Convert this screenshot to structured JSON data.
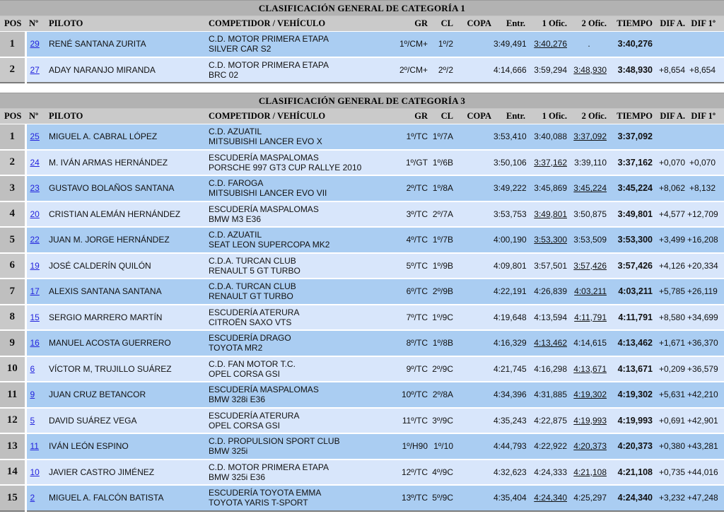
{
  "colors": {
    "title_bar": "#b2b2b2",
    "header_row": "#cacaca",
    "row_dark_blue": "#aacdf2",
    "row_light_blue": "#d8e6fb",
    "pos_dark_gray": "#bfbfbf",
    "pos_light_gray": "#c9c9c9",
    "link_blue": "#2222dd"
  },
  "tables": [
    {
      "title": "CLASIFICACIÓN GENERAL DE CATEGORÍA 1",
      "columns": [
        "POS",
        "Nº",
        "PILOTO",
        "COMPETIDOR / VEHÍCULO",
        "GR",
        "CL",
        "COPA",
        "Entr.",
        "1 Ofic.",
        "2 Ofic.",
        "TIEMPO",
        "DIF A.",
        "DIF 1º"
      ],
      "rows": [
        {
          "pos": "1",
          "num": "29",
          "pilot": "RENÉ SANTANA ZURITA",
          "competitor": "C.D. MOTOR PRIMERA ETAPA",
          "vehicle": "SILVER CAR S2",
          "gr": "1º/CM+",
          "cl": "1º/2",
          "copa": "",
          "entr": "3:49,491",
          "ofic1": "3:40,276",
          "ofic2": ".",
          "best": "1",
          "tiempo": "3:40,276",
          "dif_a": "",
          "dif_1": ""
        },
        {
          "pos": "2",
          "num": "27",
          "pilot": "ADAY NARANJO MIRANDA",
          "competitor": "C.D. MOTOR PRIMERA ETAPA",
          "vehicle": "BRC 02",
          "gr": "2º/CM+",
          "cl": "2º/2",
          "copa": "",
          "entr": "4:14,666",
          "ofic1": "3:59,294",
          "ofic2": "3:48,930",
          "best": "2",
          "tiempo": "3:48,930",
          "dif_a": "+8,654",
          "dif_1": "+8,654"
        }
      ]
    },
    {
      "title": "CLASIFICACIÓN GENERAL DE CATEGORÍA 3",
      "columns": [
        "POS",
        "Nº",
        "PILOTO",
        "COMPETIDOR / VEHÍCULO",
        "GR",
        "CL",
        "COPA",
        "Entr.",
        "1 Ofic.",
        "2 Ofic.",
        "TIEMPO",
        "DIF A.",
        "DIF 1º"
      ],
      "rows": [
        {
          "pos": "1",
          "num": "25",
          "pilot": "MIGUEL A. CABRAL LÓPEZ",
          "competitor": "C.D. AZUATIL",
          "vehicle": "MITSUBISHI LANCER EVO X",
          "gr": "1º/TC",
          "cl": "1º/7A",
          "copa": "",
          "entr": "3:53,410",
          "ofic1": "3:40,088",
          "ofic2": "3:37,092",
          "best": "2",
          "tiempo": "3:37,092",
          "dif_a": "",
          "dif_1": ""
        },
        {
          "pos": "2",
          "num": "24",
          "pilot": "M. IVÁN ARMAS HERNÁNDEZ",
          "competitor": "ESCUDERÍA MASPALOMAS",
          "vehicle": "PORSCHE 997 GT3 CUP RALLYE 2010",
          "gr": "1º/GT",
          "cl": "1º/6B",
          "copa": "",
          "entr": "3:50,106",
          "ofic1": "3:37,162",
          "ofic2": "3:39,110",
          "best": "1",
          "tiempo": "3:37,162",
          "dif_a": "+0,070",
          "dif_1": "+0,070"
        },
        {
          "pos": "3",
          "num": "23",
          "pilot": "GUSTAVO BOLAÑOS SANTANA",
          "competitor": "C.D. FAROGA",
          "vehicle": "MITSUBISHI LANCER EVO VII",
          "gr": "2º/TC",
          "cl": "1º/8A",
          "copa": "",
          "entr": "3:49,222",
          "ofic1": "3:45,869",
          "ofic2": "3:45,224",
          "best": "2",
          "tiempo": "3:45,224",
          "dif_a": "+8,062",
          "dif_1": "+8,132"
        },
        {
          "pos": "4",
          "num": "20",
          "pilot": "CRISTIAN ALEMÁN HERNÁNDEZ",
          "competitor": "ESCUDERÍA MASPALOMAS",
          "vehicle": "BMW M3 E36",
          "gr": "3º/TC",
          "cl": "2º/7A",
          "copa": "",
          "entr": "3:53,753",
          "ofic1": "3:49,801",
          "ofic2": "3:50,875",
          "best": "1",
          "tiempo": "3:49,801",
          "dif_a": "+4,577",
          "dif_1": "+12,709"
        },
        {
          "pos": "5",
          "num": "22",
          "pilot": "JUAN M. JORGE HERNÁNDEZ",
          "competitor": "C.D. AZUATIL",
          "vehicle": "SEAT LEON SUPERCOPA MK2",
          "gr": "4º/TC",
          "cl": "1º/7B",
          "copa": "",
          "entr": "4:00,190",
          "ofic1": "3:53,300",
          "ofic2": "3:53,509",
          "best": "1",
          "tiempo": "3:53,300",
          "dif_a": "+3,499",
          "dif_1": "+16,208"
        },
        {
          "pos": "6",
          "num": "19",
          "pilot": "JOSÉ CALDERÍN QUILÓN",
          "competitor": "C.D.A. TURCAN CLUB",
          "vehicle": "RENAULT 5 GT TURBO",
          "gr": "5º/TC",
          "cl": "1º/9B",
          "copa": "",
          "entr": "4:09,801",
          "ofic1": "3:57,501",
          "ofic2": "3:57,426",
          "best": "2",
          "tiempo": "3:57,426",
          "dif_a": "+4,126",
          "dif_1": "+20,334"
        },
        {
          "pos": "7",
          "num": "17",
          "pilot": "ALEXIS SANTANA SANTANA",
          "competitor": "C.D.A. TURCAN CLUB",
          "vehicle": "RENAULT GT TURBO",
          "gr": "6º/TC",
          "cl": "2º/9B",
          "copa": "",
          "entr": "4:22,191",
          "ofic1": "4:26,839",
          "ofic2": "4:03,211",
          "best": "2",
          "tiempo": "4:03,211",
          "dif_a": "+5,785",
          "dif_1": "+26,119"
        },
        {
          "pos": "8",
          "num": "15",
          "pilot": "SERGIO MARRERO MARTÍN",
          "competitor": "ESCUDERÍA ATERURA",
          "vehicle": "CITROËN SAXO VTS",
          "gr": "7º/TC",
          "cl": "1º/9C",
          "copa": "",
          "entr": "4:19,648",
          "ofic1": "4:13,594",
          "ofic2": "4:11,791",
          "best": "2",
          "tiempo": "4:11,791",
          "dif_a": "+8,580",
          "dif_1": "+34,699"
        },
        {
          "pos": "9",
          "num": "16",
          "pilot": "MANUEL ACOSTA GUERRERO",
          "competitor": "ESCUDERÍA DRAGO",
          "vehicle": "TOYOTA MR2",
          "gr": "8º/TC",
          "cl": "1º/8B",
          "copa": "",
          "entr": "4:16,329",
          "ofic1": "4:13,462",
          "ofic2": "4:14,615",
          "best": "1",
          "tiempo": "4:13,462",
          "dif_a": "+1,671",
          "dif_1": "+36,370"
        },
        {
          "pos": "10",
          "num": "6",
          "pilot": "VÍCTOR M, TRUJILLO SUÁREZ",
          "competitor": "C.D. FAN MOTOR T.C.",
          "vehicle": "OPEL CORSA GSI",
          "gr": "9º/TC",
          "cl": "2º/9C",
          "copa": "",
          "entr": "4:21,745",
          "ofic1": "4:16,298",
          "ofic2": "4:13,671",
          "best": "2",
          "tiempo": "4:13,671",
          "dif_a": "+0,209",
          "dif_1": "+36,579"
        },
        {
          "pos": "11",
          "num": "9",
          "pilot": "JUAN CRUZ BETANCOR",
          "competitor": "ESCUDERÍA MASPALOMAS",
          "vehicle": "BMW 328i E36",
          "gr": "10º/TC",
          "cl": "2º/8A",
          "copa": "",
          "entr": "4:34,396",
          "ofic1": "4:31,885",
          "ofic2": "4:19,302",
          "best": "2",
          "tiempo": "4:19,302",
          "dif_a": "+5,631",
          "dif_1": "+42,210"
        },
        {
          "pos": "12",
          "num": "5",
          "pilot": "DAVID SUÁREZ VEGA",
          "competitor": "ESCUDERÍA ATERURA",
          "vehicle": "OPEL CORSA GSI",
          "gr": "11º/TC",
          "cl": "3º/9C",
          "copa": "",
          "entr": "4:35,243",
          "ofic1": "4:22,875",
          "ofic2": "4:19,993",
          "best": "2",
          "tiempo": "4:19,993",
          "dif_a": "+0,691",
          "dif_1": "+42,901"
        },
        {
          "pos": "13",
          "num": "11",
          "pilot": "IVÁN LEÓN ESPINO",
          "competitor": "C.D. PROPULSION SPORT CLUB",
          "vehicle": "BMW 325i",
          "gr": "1º/H90",
          "cl": "1º/10",
          "copa": "",
          "entr": "4:44,793",
          "ofic1": "4:22,922",
          "ofic2": "4:20,373",
          "best": "2",
          "tiempo": "4:20,373",
          "dif_a": "+0,380",
          "dif_1": "+43,281"
        },
        {
          "pos": "14",
          "num": "10",
          "pilot": "JAVIER CASTRO JIMÉNEZ",
          "competitor": "C.D. MOTOR PRIMERA ETAPA",
          "vehicle": "BMW 325i E36",
          "gr": "12º/TC",
          "cl": "4º/9C",
          "copa": "",
          "entr": "4:32,623",
          "ofic1": "4:24,333",
          "ofic2": "4:21,108",
          "best": "2",
          "tiempo": "4:21,108",
          "dif_a": "+0,735",
          "dif_1": "+44,016"
        },
        {
          "pos": "15",
          "num": "2",
          "pilot": "MIGUEL A. FALCÓN BATISTA",
          "competitor": "ESCUDERÍA TOYOTA EMMA",
          "vehicle": "TOYOTA YARIS T-SPORT",
          "gr": "13º/TC",
          "cl": "5º/9C",
          "copa": "",
          "entr": "4:35,404",
          "ofic1": "4:24,340",
          "ofic2": "4:25,297",
          "best": "1",
          "tiempo": "4:24,340",
          "dif_a": "+3,232",
          "dif_1": "+47,248"
        }
      ]
    }
  ]
}
